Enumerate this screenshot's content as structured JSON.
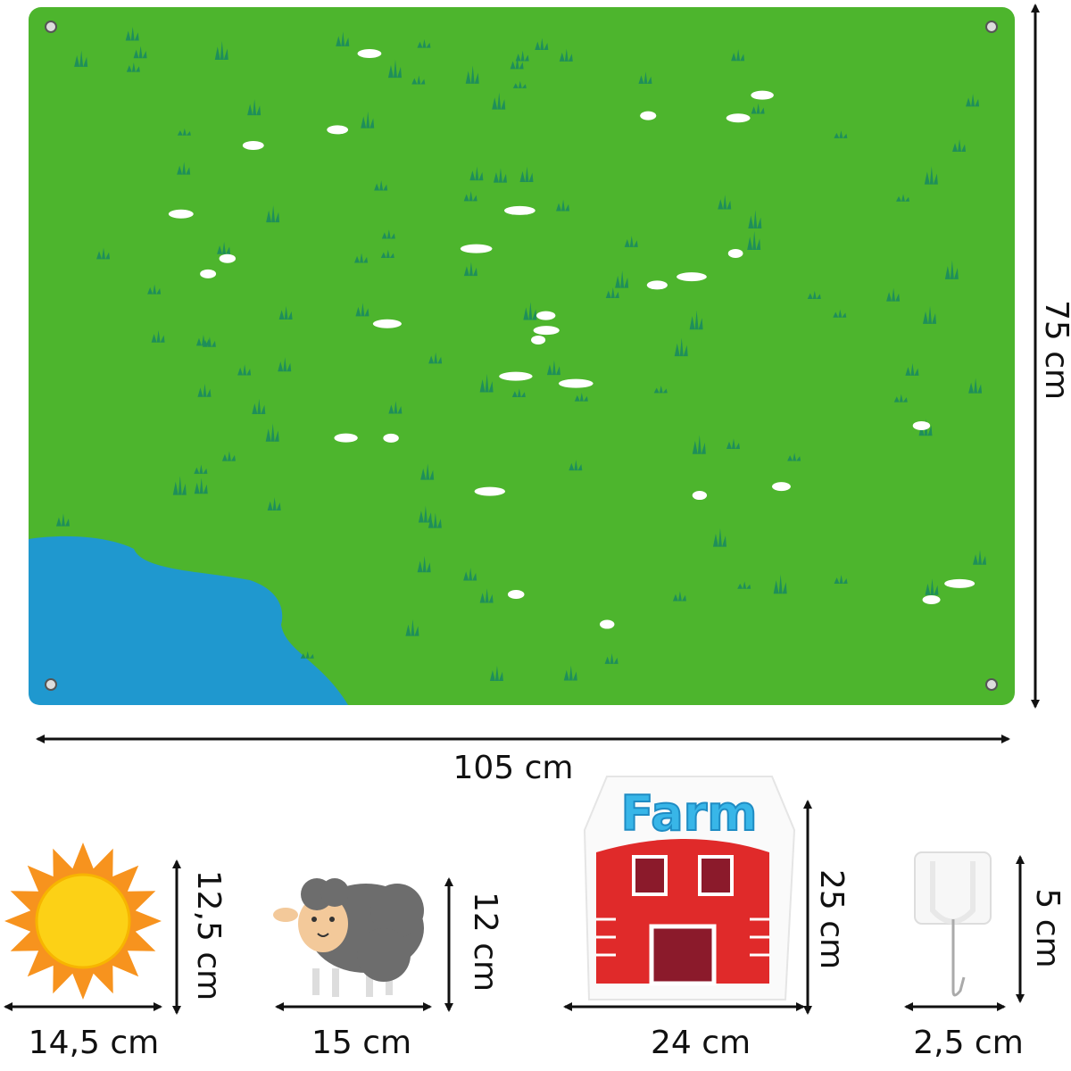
{
  "board": {
    "width_label": "105 cm",
    "height_label": "75 cm",
    "colors": {
      "grass": "#4db52d",
      "pond": "#1f98cf",
      "tuft": "#1f8f5a",
      "flower": "#ffffff"
    }
  },
  "pieces": [
    {
      "name": "sun",
      "width_label": "14,5 cm",
      "height_label": "12,5 cm"
    },
    {
      "name": "sheep",
      "width_label": "15 cm",
      "height_label": "12 cm"
    },
    {
      "name": "farm-barn",
      "width_label": "24 cm",
      "height_label": "25 cm",
      "sign_text": "Farm"
    },
    {
      "name": "hook",
      "width_label": "2,5 cm",
      "height_label": "5 cm"
    }
  ]
}
